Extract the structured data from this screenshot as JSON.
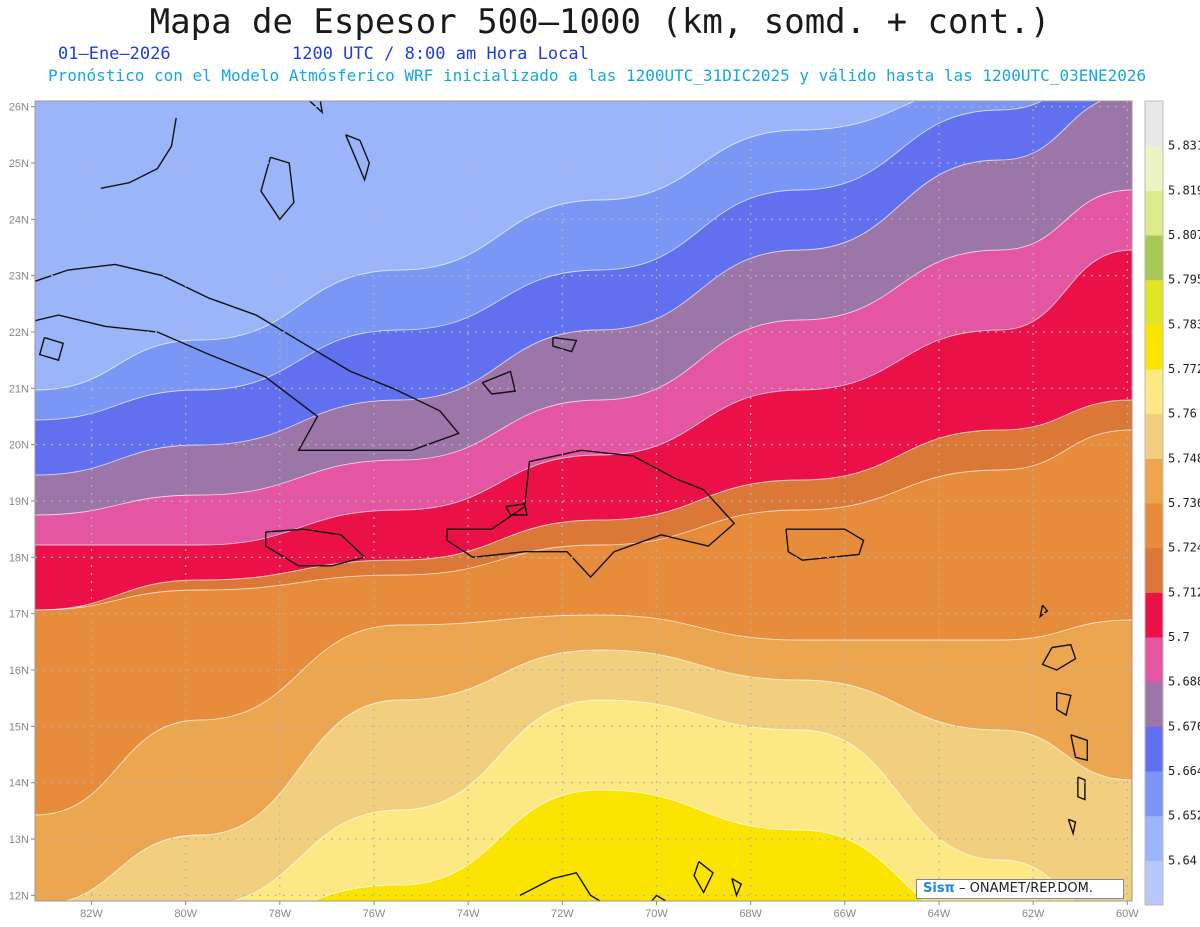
{
  "header": {
    "title": "Mapa de Espesor 500–1000 (km, somd. + cont.)",
    "date": "01–Ene–2026",
    "time": "1200 UTC / 8:00 am Hora Local",
    "forecast": "Pronóstico con el Modelo Atmósferico WRF inicializado a las 1200UTC_31DIC2025 y válido hasta las  1200UTC_03ENE2026"
  },
  "map": {
    "lon_range": [
      -83.2,
      -59.9
    ],
    "lat_range": [
      11.9,
      26.1
    ],
    "lat_ticks": [
      "12N",
      "13N",
      "14N",
      "15N",
      "16N",
      "17N",
      "18N",
      "19N",
      "20N",
      "21N",
      "22N",
      "23N",
      "24N",
      "25N",
      "26N"
    ],
    "lon_ticks": [
      "82W",
      "80W",
      "78W",
      "76W",
      "74W",
      "72W",
      "70W",
      "68W",
      "66W",
      "64W",
      "62W",
      "60W"
    ],
    "grid": "dotted"
  },
  "legend": {
    "levels": [
      "5.64",
      "5.652",
      "5.664",
      "5.676",
      "5.688",
      "5.7",
      "5.712",
      "5.724",
      "5.736",
      "5.748",
      "5.76",
      "5.772",
      "5.783",
      "5.795",
      "5.807",
      "5.819",
      "5.831"
    ],
    "colors": [
      "#b8c8fa",
      "#9ab5fa",
      "#7b97f6",
      "#6070ee",
      "#9c76a8",
      "#e455a2",
      "#ec1048",
      "#db7838",
      "#e68c3a",
      "#eca650",
      "#f1cf7e",
      "#fde984",
      "#fbe500",
      "#e0e524",
      "#a8c858",
      "#dcec8c",
      "#ecf4c4",
      "#e8e8e8"
    ]
  },
  "credit": {
    "logo": "Sisπ",
    "text": "– ONAMET/REP.DOM."
  }
}
